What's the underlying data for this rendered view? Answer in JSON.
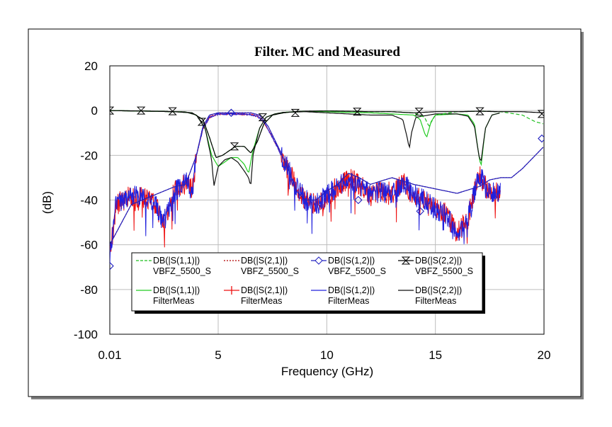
{
  "chart_data": {
    "type": "line",
    "title": "Filter.  MC and Measured",
    "xlabel": "Frequency (GHz)",
    "ylabel": "(dB)",
    "xlim": [
      0.01,
      20
    ],
    "ylim": [
      -100,
      20
    ],
    "x_ticks": [
      "0.01",
      "5",
      "10",
      "15",
      "20"
    ],
    "y_ticks": [
      "20",
      "0",
      "-20",
      "-40",
      "-60",
      "-80",
      "-100"
    ],
    "grid": true,
    "legend_position": "bottom-center",
    "series": [
      {
        "name": "DB(|S(1,1)|)",
        "source": "VBFZ_5500_S",
        "color": "#1fbf1f",
        "style": "dashed",
        "x": [
          0.01,
          1.5,
          3.0,
          3.8,
          4.3,
          4.6,
          4.9,
          5.2,
          5.5,
          5.8,
          6.2,
          6.5,
          6.8,
          7.1,
          7.5,
          8.0,
          8.5,
          9.0,
          10.0,
          11.0,
          12.0,
          13.0,
          14.0,
          14.5,
          14.7,
          15.0,
          16.0,
          17.0,
          18.0,
          19.0,
          19.6,
          20.0
        ],
        "values": [
          0,
          -0.2,
          -0.5,
          -1,
          -4,
          -12,
          -21,
          -20,
          -18,
          -16,
          -16,
          -19,
          -14,
          -6,
          -2,
          -1,
          -0.5,
          -0.3,
          -0.2,
          -0.3,
          -0.5,
          -0.5,
          -1,
          -3,
          -7,
          -2,
          -0.5,
          -0.3,
          -0.5,
          -2,
          -5,
          -6
        ]
      },
      {
        "name": "DB(|S(2,1)|)",
        "source": "VBFZ_5500_S",
        "color": "#b00000",
        "style": "dotted",
        "x": [
          0.01,
          1.0,
          2.0,
          3.0,
          3.5,
          4.0,
          4.3,
          4.6,
          5.0,
          5.5,
          6.0,
          6.5,
          6.9,
          7.3,
          7.8,
          8.3,
          8.6,
          9.0,
          9.5,
          10.0,
          10.5,
          11.0,
          11.5,
          12.0,
          13.0,
          14.0,
          15.0,
          16.0,
          17.0,
          17.5,
          18.0,
          18.5,
          19.0,
          19.5,
          20.0
        ],
        "values": [
          -60,
          -42,
          -38,
          -34,
          -33,
          -20,
          -7,
          -2,
          -1,
          -1,
          -1,
          -1,
          -2,
          -7,
          -17,
          -28,
          -36,
          -40,
          -40,
          -36,
          -33,
          -28,
          -30,
          -33,
          -30,
          -33,
          -35,
          -37,
          -34,
          -31,
          -30,
          -30,
          -26,
          -21,
          -16
        ]
      },
      {
        "name": "DB(|S(1,2)|)",
        "source": "VBFZ_5500_S",
        "color": "#2020c0",
        "style": "solid-markers",
        "marker": "diamond",
        "x": [
          0.01,
          1.0,
          2.0,
          3.0,
          3.5,
          4.0,
          4.3,
          4.6,
          5.0,
          5.5,
          6.0,
          6.5,
          6.9,
          7.3,
          7.8,
          8.3,
          8.6,
          9.0,
          9.5,
          10.0,
          10.5,
          11.0,
          11.5,
          12.0,
          13.0,
          14.0,
          15.0,
          16.0,
          17.0,
          17.5,
          18.0,
          18.5,
          19.0,
          19.5,
          20.0
        ],
        "values": [
          -60,
          -42,
          -38,
          -34,
          -33,
          -20,
          -7,
          -2,
          -1,
          -1,
          -1,
          -1,
          -2,
          -7,
          -17,
          -28,
          -36,
          -40,
          -40,
          -36,
          -33,
          -28,
          -30,
          -33,
          -30,
          -33,
          -35,
          -37,
          -34,
          -31,
          -30,
          -30,
          -26,
          -21,
          -16
        ],
        "marker_x": [
          0.01,
          5.6,
          11.45,
          14.3,
          19.9
        ],
        "marker_values": [
          -69.5,
          -1,
          -40,
          -45,
          -12.5
        ]
      },
      {
        "name": "DB(|S(2,2)|)",
        "source": "VBFZ_5500_S",
        "color": "#000000",
        "style": "solid-markers",
        "marker": "hourglass",
        "x": [
          0.01,
          1.5,
          3.0,
          3.8,
          4.3,
          4.6,
          4.9,
          5.2,
          5.5,
          5.8,
          6.2,
          6.5,
          6.8,
          7.1,
          7.5,
          8.0,
          8.5,
          9.0,
          10.0,
          11.0,
          12.0,
          13.0,
          14.0,
          15.0,
          16.0,
          17.0,
          18.0,
          19.0,
          20.0
        ],
        "values": [
          0,
          -0.2,
          -0.5,
          -1,
          -4,
          -12,
          -21,
          -20,
          -18,
          -16,
          -16,
          -19,
          -14,
          -6,
          -2,
          -1,
          -0.5,
          -0.3,
          -0.2,
          -0.3,
          -0.5,
          -0.5,
          -1,
          -0.5,
          -0.5,
          -0.3,
          -0.5,
          -0.5,
          -1
        ],
        "marker_x": [
          0.01,
          1.45,
          2.9,
          4.25,
          5.75,
          7.05,
          8.55,
          11.4,
          14.25,
          17.05,
          19.9
        ],
        "marker_values": [
          0,
          0,
          -0.3,
          -5,
          -16,
          -3,
          -1,
          -0.5,
          -0.5,
          -0.3,
          -1.5
        ]
      },
      {
        "name": "DB(|S(1,1)|)",
        "source": "FilterMeas",
        "color": "#22cc22",
        "style": "solid",
        "x": [
          0.01,
          2.0,
          3.5,
          4.0,
          4.4,
          4.7,
          5.0,
          5.3,
          5.6,
          5.9,
          6.2,
          6.4,
          6.6,
          6.9,
          7.2,
          7.6,
          8.0,
          9.0,
          10.0,
          11.0,
          12.0,
          13.0,
          14.0,
          14.3,
          14.5,
          14.6,
          14.8,
          15.0,
          16.0,
          16.5,
          16.8,
          17.0,
          17.1,
          17.3,
          17.6,
          18.0
        ],
        "values": [
          0,
          -0.3,
          -0.6,
          -2,
          -8,
          -20,
          -25,
          -23,
          -21,
          -21,
          -24,
          -28,
          -18,
          -8,
          -3,
          -1.5,
          -0.8,
          -0.3,
          -0.5,
          -0.8,
          -1,
          -1.5,
          -2,
          -4,
          -10,
          -12,
          -5,
          -2,
          -1.5,
          -2,
          -6,
          -20,
          -25,
          -8,
          -2,
          -1
        ]
      },
      {
        "name": "DB(|S(2,1)|)",
        "source": "FilterMeas",
        "color": "#ee1010",
        "style": "noisy",
        "x": [
          0.01,
          0.3,
          1.0,
          2.0,
          2.5,
          3.0,
          3.5,
          3.8,
          4.0,
          4.3,
          4.6,
          5.0,
          5.5,
          6.0,
          6.5,
          6.8,
          7.1,
          7.5,
          8.0,
          8.5,
          9.0,
          9.5,
          10.0,
          10.5,
          11.0,
          11.5,
          12.0,
          12.5,
          13.0,
          13.5,
          14.0,
          14.5,
          15.0,
          15.5,
          16.0,
          16.5,
          17.0,
          17.3,
          17.6,
          18.0
        ],
        "values": [
          -65,
          -42,
          -38,
          -40,
          -50,
          -36,
          -32,
          -36,
          -20,
          -8,
          -3,
          -1.5,
          -1.5,
          -1.5,
          -1.8,
          -2.5,
          -5,
          -12,
          -22,
          -32,
          -40,
          -42,
          -38,
          -34,
          -30,
          -33,
          -38,
          -36,
          -37,
          -32,
          -38,
          -40,
          -44,
          -46,
          -55,
          -48,
          -28,
          -34,
          -37,
          -37
        ]
      },
      {
        "name": "DB(|S(1,2)|)",
        "source": "FilterMeas",
        "color": "#2020dd",
        "style": "noisy",
        "x": [
          0.01,
          0.3,
          1.0,
          2.0,
          2.5,
          3.0,
          3.5,
          3.8,
          4.0,
          4.3,
          4.6,
          5.0,
          5.5,
          6.0,
          6.5,
          6.8,
          7.1,
          7.5,
          8.0,
          8.5,
          9.0,
          9.5,
          10.0,
          10.5,
          11.0,
          11.5,
          12.0,
          12.5,
          13.0,
          13.5,
          14.0,
          14.5,
          15.0,
          15.5,
          16.0,
          16.5,
          17.0,
          17.3,
          17.6,
          18.0
        ],
        "values": [
          -65,
          -42,
          -38,
          -40,
          -50,
          -36,
          -32,
          -36,
          -20,
          -8,
          -3,
          -1.5,
          -1.5,
          -1.5,
          -1.8,
          -2.5,
          -5,
          -12,
          -22,
          -32,
          -40,
          -42,
          -38,
          -34,
          -30,
          -33,
          -38,
          -36,
          -37,
          -32,
          -38,
          -40,
          -44,
          -46,
          -55,
          -48,
          -28,
          -34,
          -37,
          -37
        ]
      },
      {
        "name": "DB(|S(2,2)|)",
        "source": "FilterMeas",
        "color": "#111111",
        "style": "solid",
        "x": [
          0.01,
          2.0,
          3.5,
          4.0,
          4.4,
          4.7,
          4.8,
          5.0,
          5.3,
          5.6,
          5.9,
          6.2,
          6.4,
          6.5,
          6.6,
          6.9,
          7.2,
          7.6,
          8.0,
          9.0,
          10.0,
          11.0,
          12.0,
          13.0,
          13.5,
          13.7,
          13.8,
          13.9,
          14.1,
          15.0,
          16.0,
          16.5,
          16.8,
          17.0,
          17.1,
          17.3,
          17.6,
          18.0
        ],
        "values": [
          0,
          -0.3,
          -0.6,
          -2,
          -8,
          -22,
          -34,
          -25,
          -22,
          -21,
          -23,
          -27,
          -30,
          -34,
          -20,
          -8,
          -3,
          -1.5,
          -0.8,
          -0.5,
          -1,
          -1.5,
          -2,
          -2,
          -4,
          -12,
          -17,
          -10,
          -3,
          -1.5,
          -1.5,
          -2.5,
          -7,
          -20,
          -23,
          -8,
          -2,
          -1
        ]
      }
    ]
  }
}
